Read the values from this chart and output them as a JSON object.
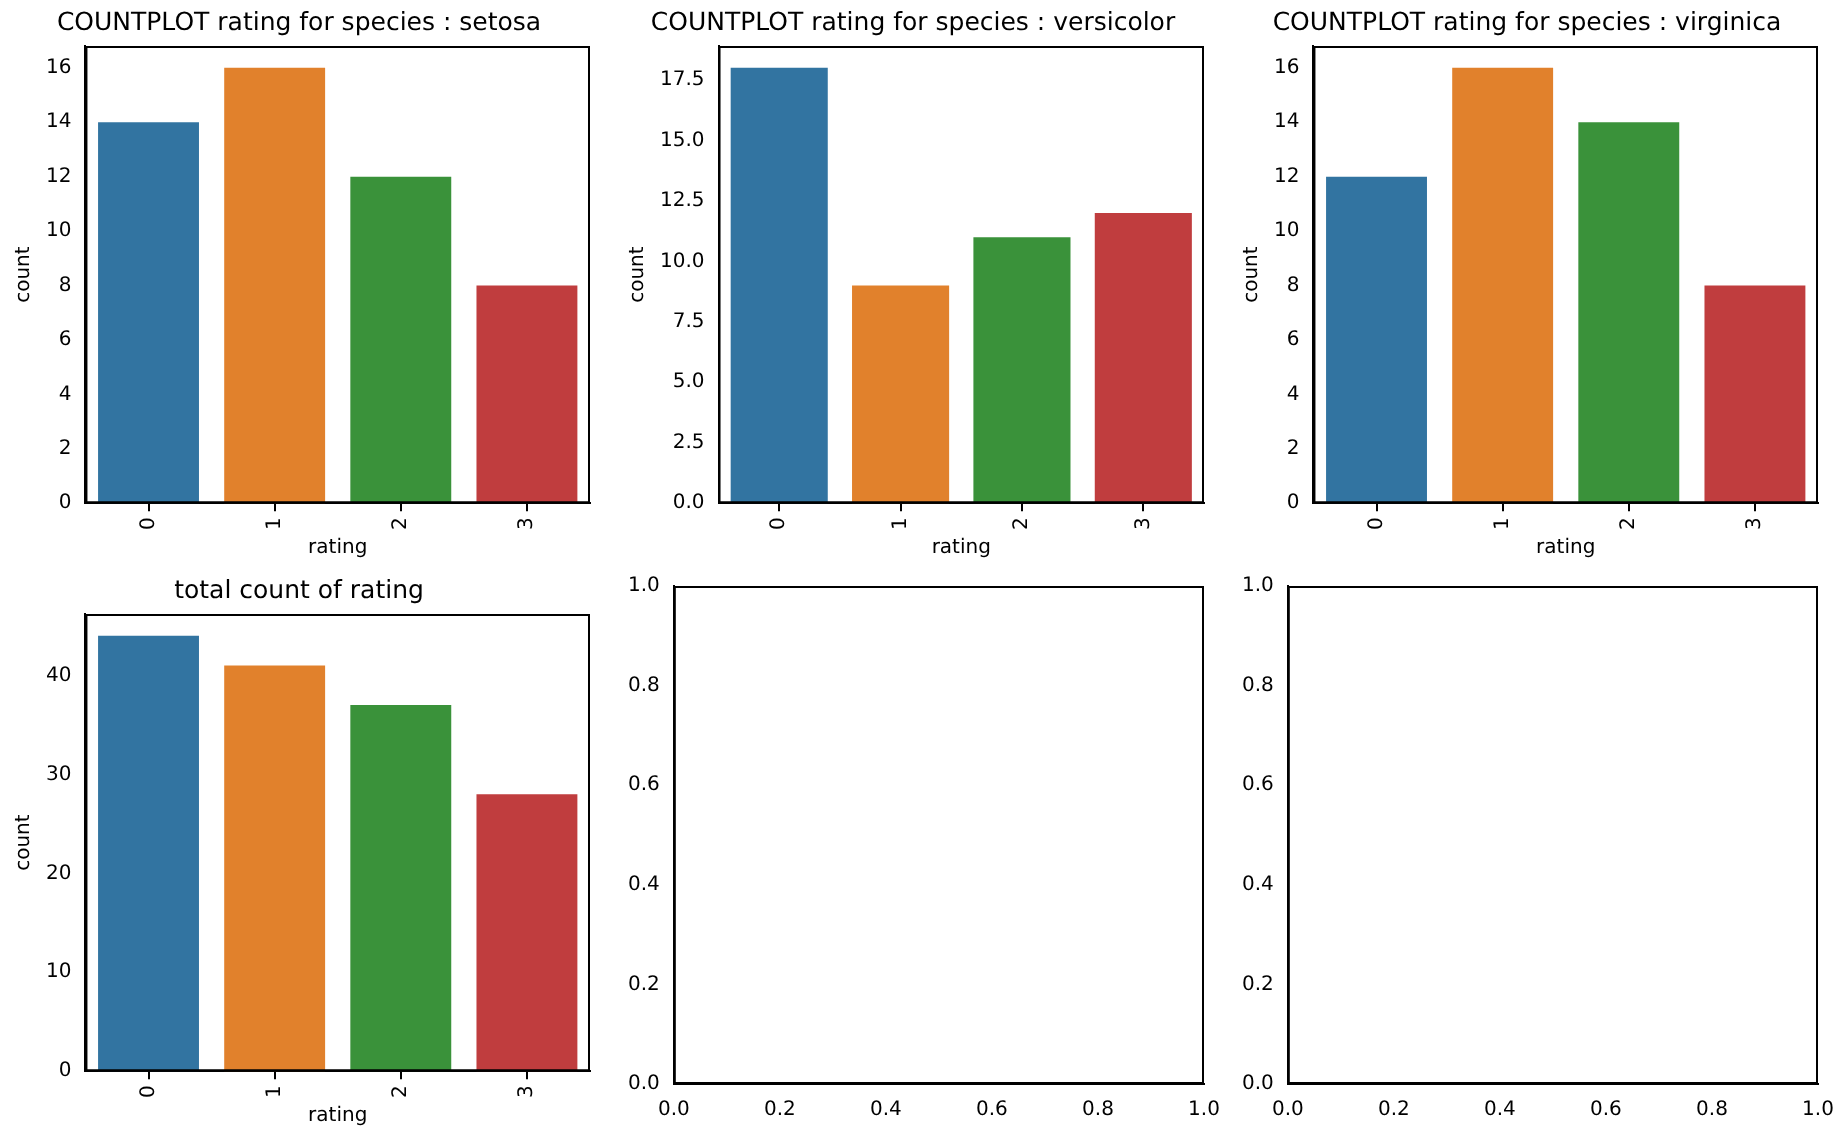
{
  "chart_data": [
    {
      "type": "bar",
      "title": "COUNTPLOT rating for species : setosa",
      "xlabel": "rating",
      "ylabel": "count",
      "categories": [
        "0",
        "1",
        "2",
        "3"
      ],
      "values": [
        14,
        16,
        12,
        8
      ],
      "colors": [
        "#3274a1",
        "#e1812c",
        "#3a923a",
        "#c03d3e"
      ],
      "ylim": [
        0,
        16.8
      ],
      "yticks": [
        0,
        2,
        4,
        6,
        8,
        10,
        12,
        14,
        16
      ]
    },
    {
      "type": "bar",
      "title": "COUNTPLOT rating for species : versicolor",
      "xlabel": "rating",
      "ylabel": "count",
      "categories": [
        "0",
        "1",
        "2",
        "3"
      ],
      "values": [
        18,
        9,
        11,
        12
      ],
      "colors": [
        "#3274a1",
        "#e1812c",
        "#3a923a",
        "#c03d3e"
      ],
      "ylim": [
        0,
        18.9
      ],
      "yticks": [
        {
          "value": 0,
          "label": "0.0"
        },
        {
          "value": 2.5,
          "label": "2.5"
        },
        {
          "value": 5,
          "label": "5.0"
        },
        {
          "value": 7.5,
          "label": "7.5"
        },
        {
          "value": 10,
          "label": "10.0"
        },
        {
          "value": 12.5,
          "label": "12.5"
        },
        {
          "value": 15,
          "label": "15.0"
        },
        {
          "value": 17.5,
          "label": "17.5"
        }
      ]
    },
    {
      "type": "bar",
      "title": "COUNTPLOT rating for species : virginica",
      "xlabel": "rating",
      "ylabel": "count",
      "categories": [
        "0",
        "1",
        "2",
        "3"
      ],
      "values": [
        12,
        16,
        14,
        8
      ],
      "colors": [
        "#3274a1",
        "#e1812c",
        "#3a923a",
        "#c03d3e"
      ],
      "ylim": [
        0,
        16.8
      ],
      "yticks": [
        0,
        2,
        4,
        6,
        8,
        10,
        12,
        14,
        16
      ]
    },
    {
      "type": "bar",
      "title": "total count of rating",
      "xlabel": "rating",
      "ylabel": "count",
      "categories": [
        "0",
        "1",
        "2",
        "3"
      ],
      "values": [
        44,
        41,
        37,
        28
      ],
      "colors": [
        "#3274a1",
        "#e1812c",
        "#3a923a",
        "#c03d3e"
      ],
      "ylim": [
        0,
        46.2
      ],
      "yticks": [
        0,
        10,
        20,
        30,
        40
      ]
    },
    {
      "type": "scatter",
      "xlim": [
        0,
        1
      ],
      "ylim": [
        0,
        1
      ],
      "xticks": [
        {
          "value": 0,
          "label": "0.0"
        },
        {
          "value": 0.2,
          "label": "0.2"
        },
        {
          "value": 0.4,
          "label": "0.4"
        },
        {
          "value": 0.6,
          "label": "0.6"
        },
        {
          "value": 0.8,
          "label": "0.8"
        },
        {
          "value": 1,
          "label": "1.0"
        }
      ],
      "yticks": [
        {
          "value": 0,
          "label": "0.0"
        },
        {
          "value": 0.2,
          "label": "0.2"
        },
        {
          "value": 0.4,
          "label": "0.4"
        },
        {
          "value": 0.6,
          "label": "0.6"
        },
        {
          "value": 0.8,
          "label": "0.8"
        },
        {
          "value": 1,
          "label": "1.0"
        }
      ]
    },
    {
      "type": "scatter",
      "xlim": [
        0,
        1
      ],
      "ylim": [
        0,
        1
      ],
      "xticks": [
        {
          "value": 0,
          "label": "0.0"
        },
        {
          "value": 0.2,
          "label": "0.2"
        },
        {
          "value": 0.4,
          "label": "0.4"
        },
        {
          "value": 0.6,
          "label": "0.6"
        },
        {
          "value": 0.8,
          "label": "0.8"
        },
        {
          "value": 1,
          "label": "1.0"
        }
      ],
      "yticks": [
        {
          "value": 0,
          "label": "0.0"
        },
        {
          "value": 0.2,
          "label": "0.2"
        },
        {
          "value": 0.4,
          "label": "0.4"
        },
        {
          "value": 0.6,
          "label": "0.6"
        },
        {
          "value": 0.8,
          "label": "0.8"
        },
        {
          "value": 1,
          "label": "1.0"
        }
      ]
    }
  ]
}
